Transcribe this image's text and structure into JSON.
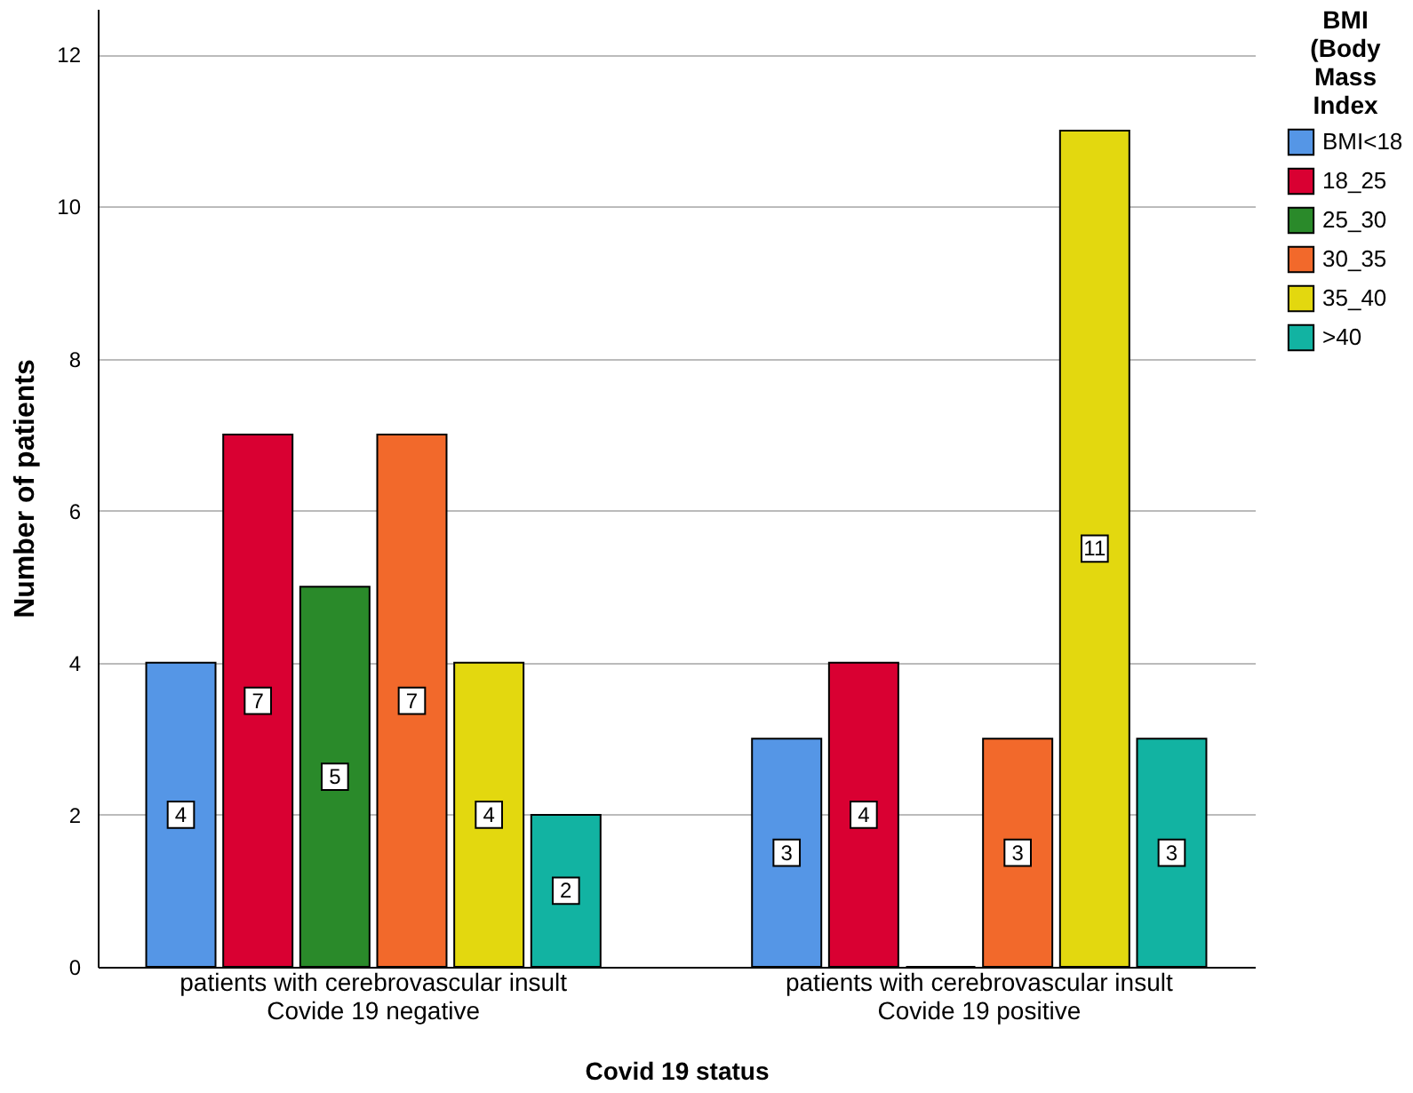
{
  "chart_data": {
    "type": "bar",
    "xlabel": "Covid 19 status",
    "ylabel": "Number of patients",
    "legend_title": "BMI (Body Mass Index",
    "categories": [
      "patients with cerebrovascular insult\nCovide 19 negative",
      "patients with cerebrovascular insult\nCovide 19 positive"
    ],
    "series": [
      {
        "name": "BMI<18",
        "color": "#5596e6",
        "values": [
          4,
          3
        ],
        "value_labels": [
          "4",
          "3"
        ]
      },
      {
        "name": "18_25",
        "color": "#d90032",
        "values": [
          7,
          4
        ],
        "value_labels": [
          "7",
          "4"
        ]
      },
      {
        "name": "25_30",
        "color": "#2a8a2a",
        "values": [
          5,
          0
        ],
        "value_labels": [
          "5",
          null
        ]
      },
      {
        "name": "30_35",
        "color": "#f2692b",
        "values": [
          7,
          3
        ],
        "value_labels": [
          "7",
          "3"
        ]
      },
      {
        "name": "35_40",
        "color": "#e3d80f",
        "values": [
          4,
          11
        ],
        "value_labels": [
          "4",
          "11"
        ]
      },
      {
        "name": ">40",
        "color": "#12b3a2",
        "values": [
          2,
          3
        ],
        "value_labels": [
          "2",
          "3"
        ]
      }
    ],
    "ylim": [
      0,
      12.6
    ],
    "yticks": [
      0,
      2,
      4,
      6,
      8,
      10,
      12
    ],
    "grid": "y",
    "legend": "top right"
  }
}
